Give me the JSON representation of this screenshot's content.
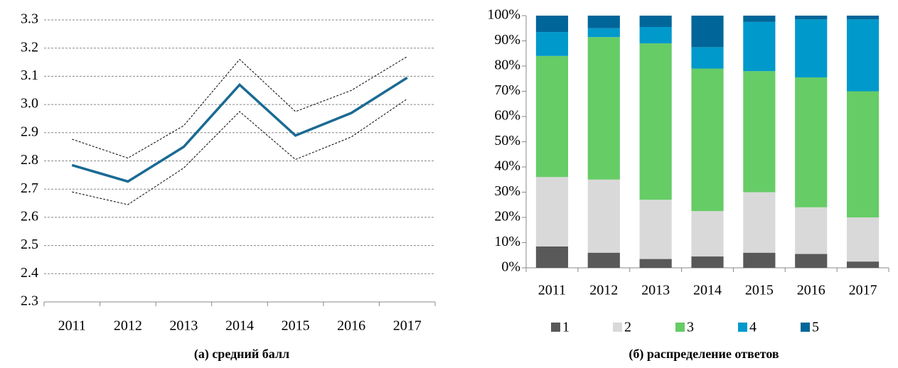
{
  "chart_data": [
    {
      "type": "line",
      "caption": "(а) средний балл",
      "categories": [
        "2011",
        "2012",
        "2013",
        "2014",
        "2015",
        "2016",
        "2017"
      ],
      "series": [
        {
          "color": "#000000",
          "style": "dashed",
          "values": [
            2.877,
            2.81,
            2.925,
            3.16,
            2.975,
            3.05,
            3.17
          ]
        },
        {
          "color": "#000000",
          "style": "dashed",
          "values": [
            2.69,
            2.645,
            2.775,
            2.975,
            2.805,
            2.885,
            3.02
          ]
        },
        {
          "color": "#1a6a94",
          "style": "solid",
          "values": [
            2.785,
            2.727,
            2.85,
            3.07,
            2.89,
            2.97,
            3.095
          ]
        }
      ],
      "ylim": [
        2.3,
        3.3
      ],
      "yticks": [
        2.3,
        2.4,
        2.5,
        2.6,
        2.7,
        2.8,
        2.9,
        {
          "value": 3,
          "label": "3.0"
        },
        3.1,
        3.2,
        3.3
      ],
      "grid": true
    },
    {
      "type": "stacked_bar",
      "caption": "(б) распределение ответов",
      "categories": [
        "2011",
        "2012",
        "2013",
        "2014",
        "2015",
        "2016",
        "2017"
      ],
      "series": [
        {
          "name": "1",
          "color": "#595959",
          "values": [
            8.5,
            6,
            3.5,
            4.5,
            6,
            5.5,
            2.5
          ]
        },
        {
          "name": "2",
          "color": "#d9d9d9",
          "values": [
            27.5,
            29,
            23.5,
            18,
            24,
            18.5,
            17.5
          ]
        },
        {
          "name": "3",
          "color": "#66cc66",
          "values": [
            48,
            56.5,
            62,
            56.5,
            48,
            51.5,
            50
          ]
        },
        {
          "name": "4",
          "color": "#0099cc",
          "values": [
            9.5,
            3.5,
            6.5,
            8.5,
            19.5,
            23,
            28.5
          ]
        },
        {
          "name": "5",
          "color": "#006699",
          "values": [
            6.5,
            5,
            4.5,
            12.5,
            2.5,
            1.5,
            1.5
          ]
        }
      ],
      "ylim": [
        0,
        100
      ],
      "yticks": [
        {
          "value": 0,
          "label": "0%"
        },
        {
          "value": 10,
          "label": "10%"
        },
        {
          "value": 20,
          "label": "20%"
        },
        {
          "value": 30,
          "label": "30%"
        },
        {
          "value": 40,
          "label": "40%"
        },
        {
          "value": 50,
          "label": "50%"
        },
        {
          "value": 60,
          "label": "60%"
        },
        {
          "value": 70,
          "label": "70%"
        },
        {
          "value": 80,
          "label": "80%"
        },
        {
          "value": 90,
          "label": "90%"
        },
        {
          "value": 100,
          "label": "100%"
        }
      ],
      "grid": false,
      "legend": "bottom"
    }
  ]
}
